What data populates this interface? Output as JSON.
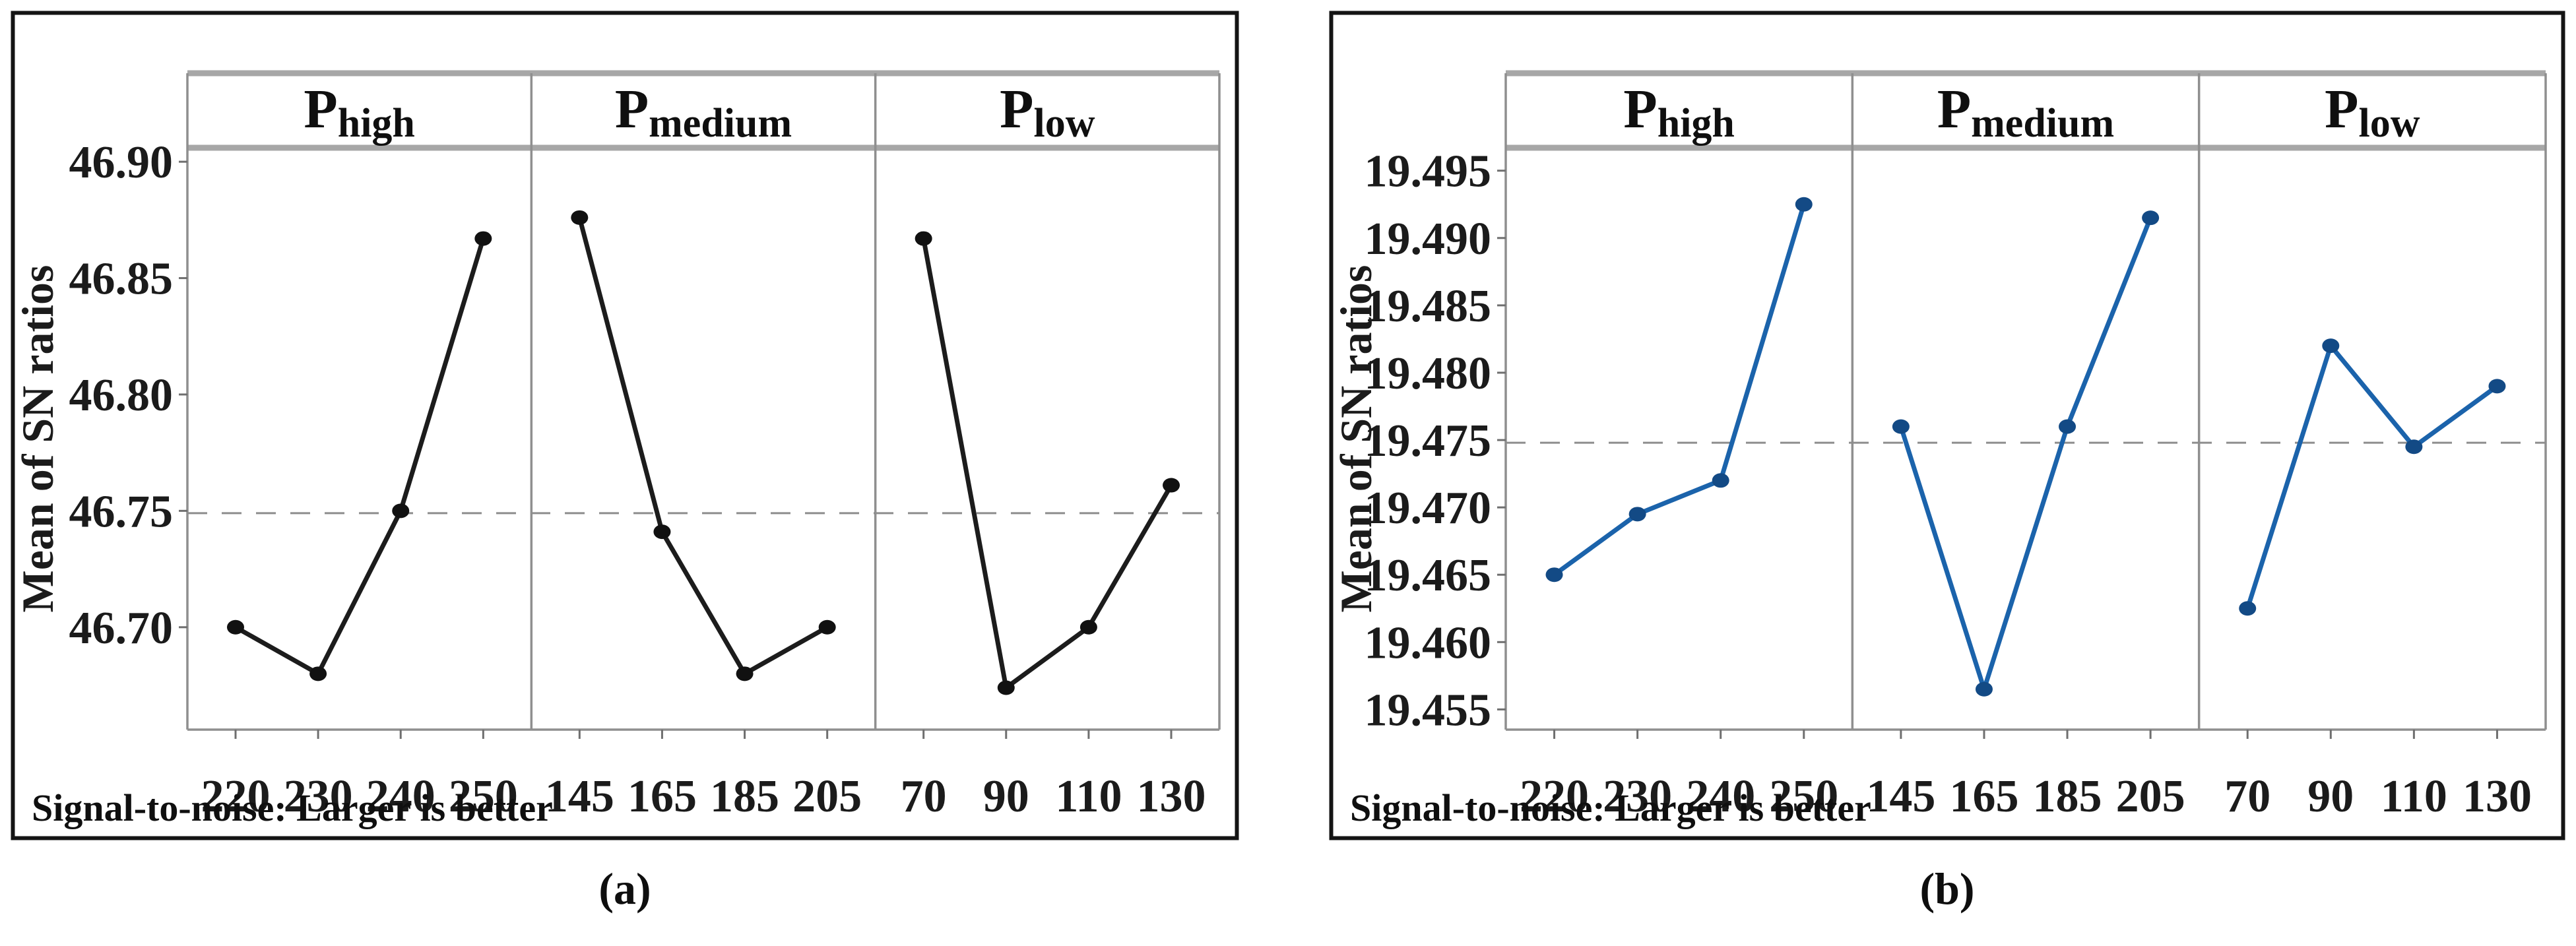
{
  "page": {
    "background_color": "#ffffff",
    "text_color": "#1b1b1b"
  },
  "chart_data": [
    {
      "type": "line",
      "id": "a",
      "caption": "(a)",
      "ylabel": "Mean of SN ratios",
      "footnote": "Signal-to-noise: Larger is better",
      "line_color": "#1c1c1c",
      "marker_color": "#111111",
      "ref_line": 46.749,
      "ref_line_color": "#8d8d8d",
      "ylim": [
        46.656,
        46.906
      ],
      "yticks": [
        46.9,
        46.85,
        46.8,
        46.75,
        46.7
      ],
      "ytick_labels": [
        "46.90",
        "46.85",
        "46.80",
        "46.75",
        "46.70"
      ],
      "grid": false,
      "legend_position": "none",
      "panels": [
        {
          "label": "P",
          "sublabel": "high",
          "categories": [
            "220",
            "230",
            "240",
            "250"
          ],
          "values": [
            46.7,
            46.68,
            46.75,
            46.867
          ]
        },
        {
          "label": "P",
          "sublabel": "medium",
          "categories": [
            "145",
            "165",
            "185",
            "205"
          ],
          "values": [
            46.876,
            46.741,
            46.68,
            46.7
          ]
        },
        {
          "label": "P",
          "sublabel": "low",
          "categories": [
            "70",
            "90",
            "110",
            "130"
          ],
          "values": [
            46.867,
            46.674,
            46.7,
            46.761
          ]
        }
      ]
    },
    {
      "type": "line",
      "id": "b",
      "caption": "(b)",
      "ylabel": "Mean of SN ratios",
      "footnote": "Signal-to-noise: Larger is better",
      "line_color": "#1b63ab",
      "marker_color": "#134a85",
      "ref_line": 19.4748,
      "ref_line_color": "#8d8d8d",
      "ylim": [
        19.4535,
        19.4967
      ],
      "yticks": [
        19.495,
        19.49,
        19.485,
        19.48,
        19.475,
        19.47,
        19.465,
        19.46,
        19.455
      ],
      "ytick_labels": [
        "19.495",
        "19.490",
        "19.485",
        "19.480",
        "19.475",
        "19.470",
        "19.465",
        "19.460",
        "19.455"
      ],
      "grid": false,
      "legend_position": "none",
      "panels": [
        {
          "label": "P",
          "sublabel": "high",
          "categories": [
            "220",
            "230",
            "240",
            "250"
          ],
          "values": [
            19.465,
            19.4695,
            19.472,
            19.4925
          ]
        },
        {
          "label": "P",
          "sublabel": "medium",
          "categories": [
            "145",
            "165",
            "185",
            "205"
          ],
          "values": [
            19.476,
            19.4565,
            19.476,
            19.4915
          ]
        },
        {
          "label": "P",
          "sublabel": "low",
          "categories": [
            "70",
            "90",
            "110",
            "130"
          ],
          "values": [
            19.4625,
            19.482,
            19.4745,
            19.479
          ]
        }
      ]
    }
  ],
  "style": {
    "border_color": "#141414",
    "panel_line_color": "#8f8f8f",
    "header_band_color": "#a7a7a7",
    "tick_color": "#6f6f6f",
    "label_color": "#1b1b1b"
  }
}
